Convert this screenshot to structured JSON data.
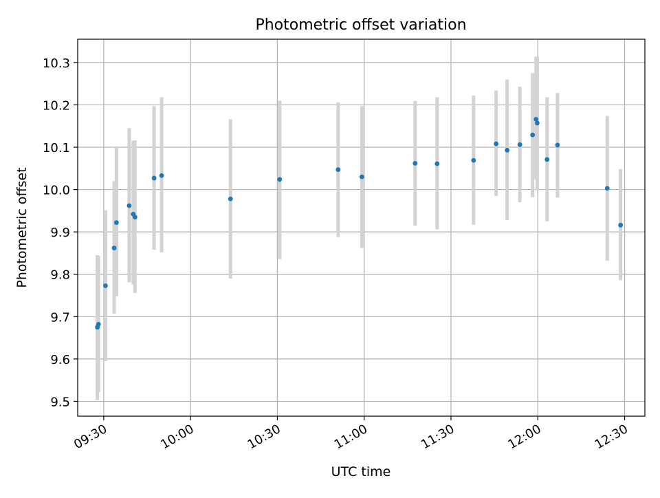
{
  "chart_data": {
    "type": "scatter",
    "title": "Photometric offset variation",
    "xlabel": "UTC time",
    "ylabel": "Photometric offset",
    "xlim": [
      "09:21",
      "12:37"
    ],
    "ylim": [
      9.465,
      10.355
    ],
    "grid": true,
    "x_ticks": [
      "09:30",
      "10:00",
      "10:30",
      "11:00",
      "11:30",
      "12:00",
      "12:30"
    ],
    "y_ticks": [
      9.5,
      9.6,
      9.7,
      9.8,
      9.9,
      10.0,
      10.1,
      10.2,
      10.3
    ],
    "y_tick_labels": [
      "9.5",
      "9.6",
      "9.7",
      "9.8",
      "9.9",
      "10.0",
      "10.1",
      "10.2",
      "10.3"
    ],
    "marker_color": "#1f77b4",
    "errorbar_color": "#d3d3d3",
    "points": [
      {
        "x": "09:27:48",
        "y": 9.675,
        "y_err_low": 9.503,
        "y_err_high": 9.845
      },
      {
        "x": "09:28:12",
        "y": 9.682,
        "y_err_low": 9.522,
        "y_err_high": 9.843
      },
      {
        "x": "09:30:36",
        "y": 9.773,
        "y_err_low": 9.595,
        "y_err_high": 9.951
      },
      {
        "x": "09:33:36",
        "y": 9.862,
        "y_err_low": 9.707,
        "y_err_high": 10.02
      },
      {
        "x": "09:34:24",
        "y": 9.922,
        "y_err_low": 9.748,
        "y_err_high": 10.1
      },
      {
        "x": "09:38:48",
        "y": 9.962,
        "y_err_low": 9.781,
        "y_err_high": 10.145
      },
      {
        "x": "09:40:12",
        "y": 9.942,
        "y_err_low": 9.776,
        "y_err_high": 10.115
      },
      {
        "x": "09:40:48",
        "y": 9.935,
        "y_err_low": 9.756,
        "y_err_high": 10.116
      },
      {
        "x": "09:47:24",
        "y": 10.027,
        "y_err_low": 9.858,
        "y_err_high": 10.197
      },
      {
        "x": "09:50:00",
        "y": 10.033,
        "y_err_low": 9.852,
        "y_err_high": 10.218
      },
      {
        "x": "10:13:48",
        "y": 9.978,
        "y_err_low": 9.79,
        "y_err_high": 10.166
      },
      {
        "x": "10:30:48",
        "y": 10.024,
        "y_err_low": 9.836,
        "y_err_high": 10.21
      },
      {
        "x": "10:51:00",
        "y": 10.047,
        "y_err_low": 9.888,
        "y_err_high": 10.206
      },
      {
        "x": "10:59:12",
        "y": 10.03,
        "y_err_low": 9.862,
        "y_err_high": 10.197
      },
      {
        "x": "11:17:36",
        "y": 10.062,
        "y_err_low": 9.915,
        "y_err_high": 10.209
      },
      {
        "x": "11:25:12",
        "y": 10.061,
        "y_err_low": 9.906,
        "y_err_high": 10.218
      },
      {
        "x": "11:37:48",
        "y": 10.069,
        "y_err_low": 9.917,
        "y_err_high": 10.222
      },
      {
        "x": "11:45:36",
        "y": 10.108,
        "y_err_low": 9.985,
        "y_err_high": 10.234
      },
      {
        "x": "11:49:24",
        "y": 10.093,
        "y_err_low": 9.928,
        "y_err_high": 10.26
      },
      {
        "x": "11:53:48",
        "y": 10.106,
        "y_err_low": 9.97,
        "y_err_high": 10.243
      },
      {
        "x": "11:58:12",
        "y": 10.129,
        "y_err_low": 9.982,
        "y_err_high": 10.275
      },
      {
        "x": "11:59:24",
        "y": 10.166,
        "y_err_low": 10.024,
        "y_err_high": 10.314
      },
      {
        "x": "11:59:48",
        "y": 10.157,
        "y_err_low": 9.998,
        "y_err_high": 10.314
      },
      {
        "x": "12:03:12",
        "y": 10.071,
        "y_err_low": 9.925,
        "y_err_high": 10.218
      },
      {
        "x": "12:06:48",
        "y": 10.105,
        "y_err_low": 9.981,
        "y_err_high": 10.228
      },
      {
        "x": "12:24:00",
        "y": 10.003,
        "y_err_low": 9.832,
        "y_err_high": 10.174
      },
      {
        "x": "12:28:36",
        "y": 9.916,
        "y_err_low": 9.786,
        "y_err_high": 10.048
      }
    ]
  }
}
